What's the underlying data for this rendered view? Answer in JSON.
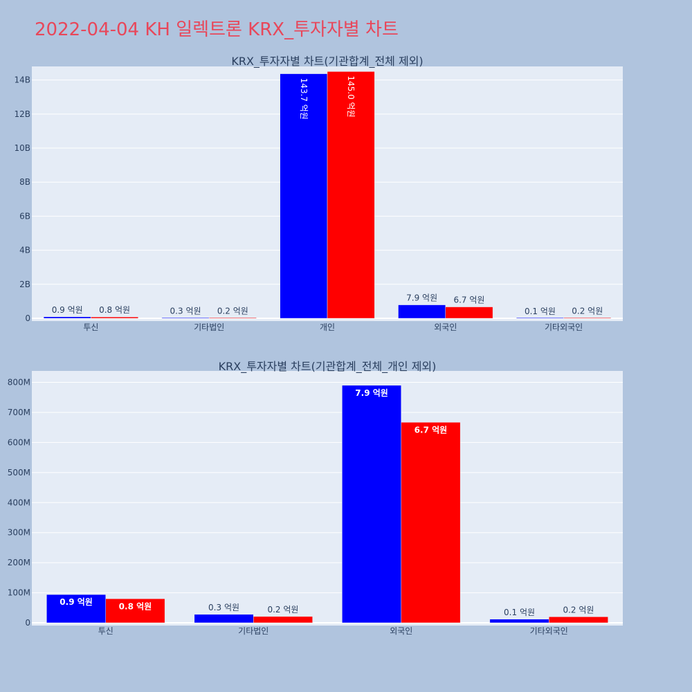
{
  "page": {
    "title": "2022-04-04 KH 일렉트론 KRX_투자자별 차트"
  },
  "colors": {
    "buy": "#0000ff",
    "sell": "#ff0000",
    "plot_bg": "#e5ecf6",
    "page_bg": "#b0c4de",
    "title": "#e8475a"
  },
  "chart_data": [
    {
      "type": "bar",
      "title": "KRX_투자자별 차트(기관합계_전체 제외)",
      "categories": [
        "투신",
        "기타법인",
        "개인",
        "외국인",
        "기타외국인"
      ],
      "series": [
        {
          "values": [
            90000000,
            30000000,
            14370000000,
            790000000,
            10000000
          ],
          "labels": [
            "0.9 억원",
            "0.3 억원",
            "143.7 억원",
            "7.9 억원",
            "0.1 억원"
          ]
        },
        {
          "values": [
            80000000,
            20000000,
            14500000000,
            670000000,
            20000000
          ],
          "labels": [
            "0.8 억원",
            "0.2 억원",
            "145.0 억원",
            "6.7 억원",
            "0.2 억원"
          ]
        }
      ],
      "ylim": [
        0,
        14800000000
      ],
      "yticks": [
        0,
        2000000000,
        4000000000,
        6000000000,
        8000000000,
        10000000000,
        12000000000,
        14000000000
      ],
      "ytick_labels": [
        "0",
        "2B",
        "4B",
        "6B",
        "8B",
        "10B",
        "12B",
        "14B"
      ],
      "grid": true
    },
    {
      "type": "bar",
      "title": "KRX_투자자별 차트(기관합계_전체_개인 제외)",
      "categories": [
        "투신",
        "기타법인",
        "외국인",
        "기타외국인"
      ],
      "series": [
        {
          "values": [
            94000000,
            28000000,
            790000000,
            12000000
          ],
          "labels": [
            "0.9 억원",
            "0.3 억원",
            "7.9 억원",
            "0.1 억원"
          ]
        },
        {
          "values": [
            80000000,
            21000000,
            667000000,
            20000000
          ],
          "labels": [
            "0.8 억원",
            "0.2 억원",
            "6.7 억원",
            "0.2 억원"
          ]
        }
      ],
      "ylim": [
        0,
        838000000
      ],
      "yticks": [
        0,
        100000000,
        200000000,
        300000000,
        400000000,
        500000000,
        600000000,
        700000000,
        800000000
      ],
      "ytick_labels": [
        "0",
        "100M",
        "200M",
        "300M",
        "400M",
        "500M",
        "600M",
        "700M",
        "800M"
      ],
      "grid": true
    }
  ]
}
